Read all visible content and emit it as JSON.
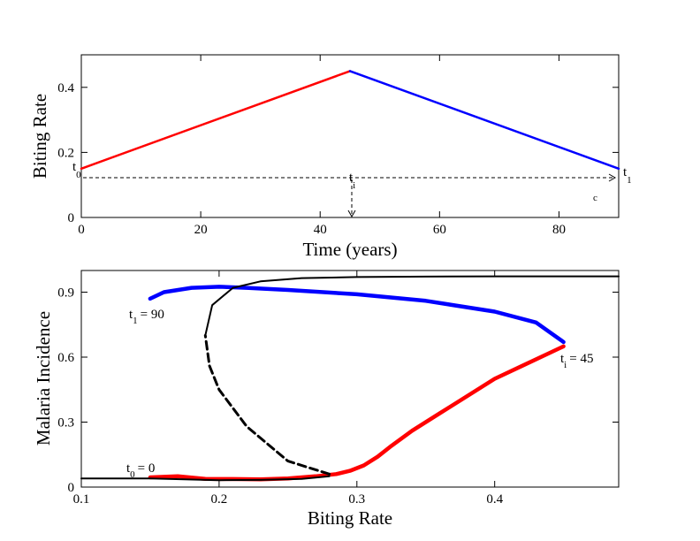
{
  "chart_data": [
    {
      "type": "line",
      "xlabel": "Time (years)",
      "ylabel": "Biting Rate",
      "xlim": [
        0,
        90
      ],
      "ylim": [
        0,
        0.5
      ],
      "xticks": [
        0,
        20,
        40,
        60,
        80
      ],
      "yticks": [
        0,
        0.2,
        0.4
      ],
      "xtick_labels": [
        "0",
        "20",
        "40",
        "60",
        "80"
      ],
      "ytick_labels": [
        "0",
        "0.2",
        "0.4"
      ],
      "grid": false,
      "series": [
        {
          "color": "#ff0000",
          "x": [
            0,
            45
          ],
          "y": [
            0.15,
            0.45
          ]
        },
        {
          "color": "#0000ff",
          "x": [
            45,
            90
          ],
          "y": [
            0.45,
            0.15
          ]
        }
      ],
      "annotations": {
        "t0": {
          "base": "t",
          "sub": "0"
        },
        "ti": {
          "base": "t",
          "sub": "i"
        },
        "t1": {
          "base": "t",
          "sub": "1"
        },
        "c": "c"
      }
    },
    {
      "type": "line",
      "xlabel": "Biting Rate",
      "ylabel": "Malaria Incidence",
      "xlim": [
        0.1,
        0.49
      ],
      "ylim": [
        0,
        1.0
      ],
      "xticks": [
        0.1,
        0.2,
        0.3,
        0.4
      ],
      "yticks": [
        0,
        0.3,
        0.6,
        0.9
      ],
      "xtick_labels": [
        "0.1",
        "0.2",
        "0.3",
        "0.4"
      ],
      "ytick_labels": [
        "0",
        "0.3",
        "0.6",
        "0.9"
      ],
      "grid": false,
      "series": [
        {
          "color": "#ff0000",
          "x": [
            0.15,
            0.17,
            0.19,
            0.21,
            0.23,
            0.25,
            0.27,
            0.285,
            0.295,
            0.305,
            0.315,
            0.325,
            0.34,
            0.36,
            0.38,
            0.4,
            0.42,
            0.44,
            0.45
          ],
          "y": [
            0.045,
            0.05,
            0.038,
            0.037,
            0.036,
            0.04,
            0.05,
            0.06,
            0.075,
            0.1,
            0.14,
            0.19,
            0.26,
            0.34,
            0.42,
            0.5,
            0.56,
            0.62,
            0.65
          ]
        },
        {
          "color": "#0000ff",
          "x": [
            0.15,
            0.16,
            0.18,
            0.2,
            0.22,
            0.25,
            0.3,
            0.35,
            0.4,
            0.43,
            0.45
          ],
          "y": [
            0.87,
            0.9,
            0.92,
            0.925,
            0.92,
            0.91,
            0.89,
            0.86,
            0.81,
            0.76,
            0.67
          ]
        },
        {
          "color": "#000000",
          "style": "solid",
          "x": [
            0.1,
            0.15,
            0.2,
            0.23,
            0.26,
            0.28
          ],
          "y": [
            0.04,
            0.04,
            0.032,
            0.033,
            0.038,
            0.05
          ]
        },
        {
          "color": "#000000",
          "style": "dashed",
          "x": [
            0.28,
            0.25,
            0.22,
            0.2,
            0.193,
            0.19
          ],
          "y": [
            0.06,
            0.12,
            0.28,
            0.45,
            0.56,
            0.7
          ]
        },
        {
          "color": "#000000",
          "style": "solid",
          "x": [
            0.19,
            0.195,
            0.21,
            0.23,
            0.26,
            0.3,
            0.35,
            0.4,
            0.49
          ],
          "y": [
            0.7,
            0.84,
            0.92,
            0.95,
            0.965,
            0.97,
            0.972,
            0.973,
            0.973
          ]
        }
      ],
      "annotations": {
        "t1_90": {
          "base": "t",
          "sub": "1",
          "rest": "= 90"
        },
        "ti_45": {
          "base": "t",
          "sub": "i",
          "rest": "= 45"
        },
        "t0_0": {
          "base": "t",
          "sub": "0",
          "rest": "= 0"
        }
      }
    }
  ]
}
